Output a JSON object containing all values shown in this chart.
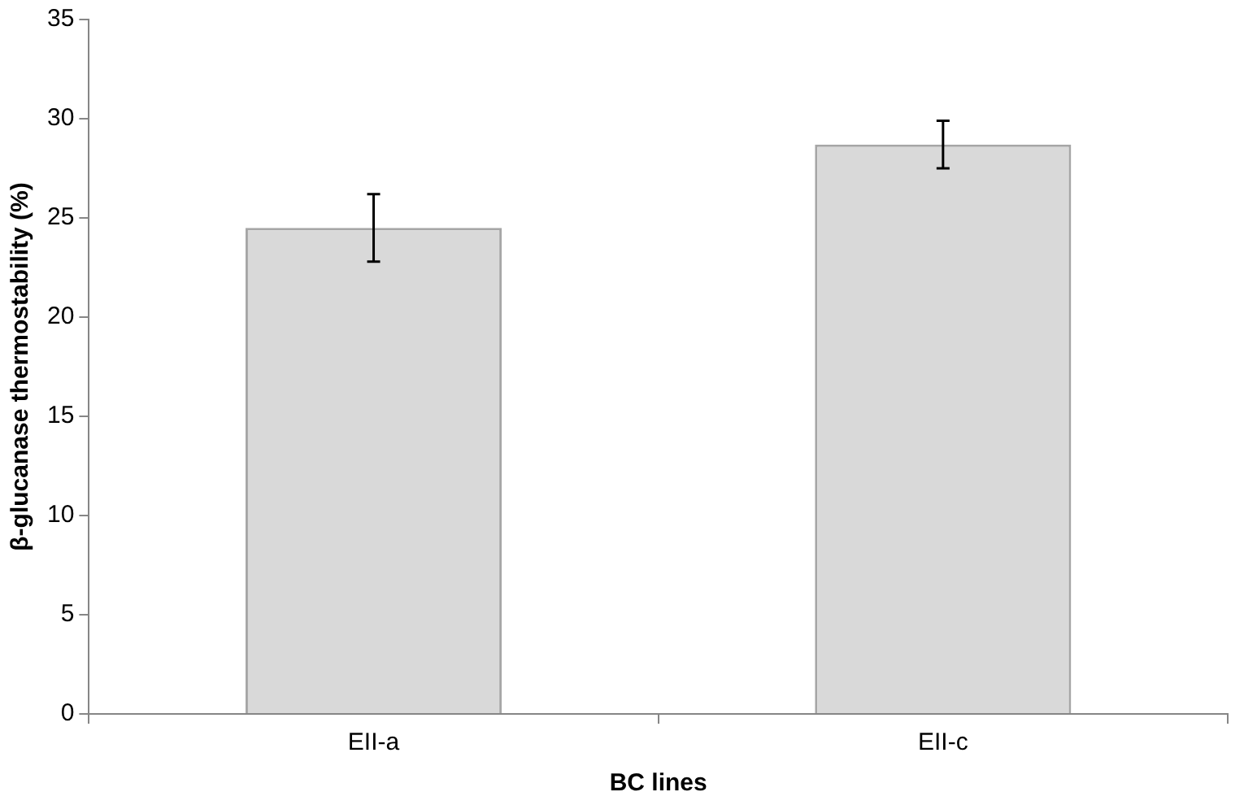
{
  "chart_data": {
    "type": "bar",
    "xlabel": "BC lines",
    "ylabel": "β-glucanase thermostability (%)",
    "categories": [
      "EII-a",
      "EII-c"
    ],
    "values": [
      24.5,
      28.7
    ],
    "errors": [
      1.7,
      1.2
    ],
    "color": "#d9d9d9",
    "ylim": [
      0,
      35
    ],
    "yticks": [
      0,
      5,
      10,
      15,
      20,
      25,
      30,
      35
    ],
    "grid": false,
    "legend": false
  }
}
